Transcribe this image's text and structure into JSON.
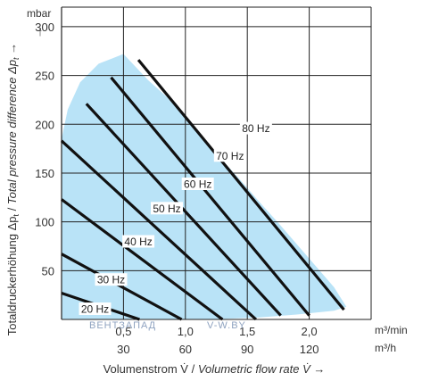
{
  "chart_data": {
    "type": "line",
    "y_unit": "mbar",
    "x_unit_primary": "m³/min",
    "x_unit_secondary": "m³/h",
    "ylim": [
      0,
      320
    ],
    "xlim": [
      0,
      2.5
    ],
    "yticks": [
      "50",
      "100",
      "150",
      "200",
      "250",
      "300"
    ],
    "xticks_primary": [
      "0,5",
      "1,0",
      "1,5",
      "2,0"
    ],
    "xticks_secondary": [
      "30",
      "60",
      "90",
      "120"
    ],
    "xlabel": {
      "prefix": "Volumenstrom V̇ / ",
      "italic": "Volumetric flow rate V̇",
      "arrow": " →"
    },
    "ylabel": {
      "prefix": "Totaldruckerhöhung Δp",
      "sub1": "t",
      "middle": " / ",
      "italic": "Total pressure difference Δp",
      "sub2": "t",
      "arrow": " →"
    },
    "grid": true,
    "operating_area": {
      "color": "#b9e3f7",
      "x": [
        0.0,
        0.0,
        0.05,
        0.15,
        0.3,
        0.5,
        0.7,
        0.85,
        1.0,
        1.15,
        1.3,
        1.45,
        1.6,
        1.75,
        1.9,
        2.05,
        2.2,
        2.3,
        2.2,
        1.9,
        1.6,
        1.3,
        1.0,
        0.7,
        0.4,
        0.0
      ],
      "y": [
        0.0,
        185.0,
        215.0,
        243.0,
        262.0,
        272.0,
        245.0,
        228.0,
        206.0,
        185.0,
        163.0,
        142.0,
        120.0,
        99.0,
        77.0,
        55.0,
        33.0,
        13.0,
        9.0,
        5.0,
        2.0,
        0.5,
        0.0,
        0.0,
        0.0,
        0.0
      ]
    },
    "series": [
      {
        "name": "20 Hz",
        "label_at": [
          0.27,
          11
        ],
        "x": [
          0.0,
          0.63
        ],
        "y": [
          27,
          0
        ]
      },
      {
        "name": "30 Hz",
        "label_at": [
          0.4,
          41
        ],
        "x": [
          0.0,
          0.97
        ],
        "y": [
          67,
          0
        ]
      },
      {
        "name": "40 Hz",
        "label_at": [
          0.62,
          80
        ],
        "x": [
          0.0,
          1.3
        ],
        "y": [
          123,
          0
        ]
      },
      {
        "name": "50 Hz",
        "label_at": [
          0.85,
          114
        ],
        "x": [
          0.0,
          1.57
        ],
        "y": [
          183,
          0
        ]
      },
      {
        "name": "60 Hz",
        "label_at": [
          1.1,
          139
        ],
        "x": [
          0.2,
          1.77
        ],
        "y": [
          221,
          4
        ]
      },
      {
        "name": "70 Hz",
        "label_at": [
          1.36,
          168
        ],
        "x": [
          0.4,
          2.0
        ],
        "y": [
          248,
          4
        ]
      },
      {
        "name": "80 Hz",
        "label_at": [
          1.57,
          196
        ],
        "x": [
          0.62,
          2.28
        ],
        "y": [
          266,
          10
        ]
      }
    ],
    "line_color": "#111111"
  },
  "watermark": {
    "left": "ВЕНТЗАПАД",
    "right": "V-W.BY"
  }
}
